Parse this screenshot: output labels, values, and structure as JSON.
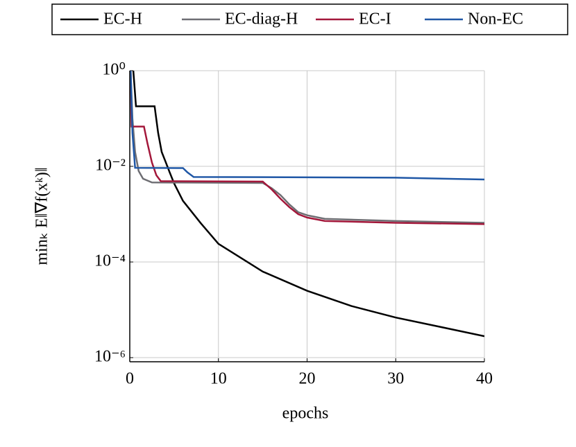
{
  "chart_data": {
    "type": "line",
    "xlabel": "epochs",
    "ylabel": "minₖ E‖∇f(xᵏ)‖",
    "log_y": true,
    "grid": true,
    "legend": "top",
    "xlim": [
      0,
      40
    ],
    "ylim": [
      8.2e-07,
      1
    ],
    "xticks": [
      0,
      10,
      20,
      30,
      40
    ],
    "yticks": [
      {
        "value": 1,
        "label": "10⁰"
      },
      {
        "value": 0.01,
        "label": "10⁻²"
      },
      {
        "value": 0.0001,
        "label": "10⁻⁴"
      },
      {
        "value": 1e-06,
        "label": "10⁻⁶"
      }
    ],
    "series": [
      {
        "name": "EC-H",
        "color": "#000000",
        "x": [
          0.4,
          0.7,
          2.8,
          3.2,
          3.6,
          4,
          4.5,
          5,
          6,
          8,
          10,
          15,
          20,
          25,
          30,
          35,
          40
        ],
        "values": [
          1,
          0.18,
          0.18,
          0.05,
          0.02,
          0.013,
          0.0075,
          0.0044,
          0.0019,
          0.00065,
          0.00024,
          6.3e-05,
          2.5e-05,
          1.2e-05,
          6.9e-06,
          4.4e-06,
          2.8e-06
        ]
      },
      {
        "name": "EC-diag-H",
        "color": "#6e6e73",
        "x": [
          0.1,
          0.3,
          0.6,
          1,
          1.5,
          2.5,
          15,
          16,
          17,
          18,
          19,
          20,
          22,
          30,
          40
        ],
        "values": [
          1,
          0.1,
          0.02,
          0.008,
          0.0055,
          0.0046,
          0.0045,
          0.0035,
          0.0025,
          0.0016,
          0.0011,
          0.00095,
          0.0008,
          0.00072,
          0.00066
        ]
      },
      {
        "name": "EC-I",
        "color": "#a3173a",
        "x": [
          0.1,
          0.2,
          1.6,
          2,
          2.5,
          3,
          3.5,
          15,
          16,
          17,
          18,
          19,
          20,
          22,
          30,
          40
        ],
        "values": [
          1,
          0.068,
          0.068,
          0.03,
          0.012,
          0.0065,
          0.0049,
          0.0048,
          0.0033,
          0.0021,
          0.0014,
          0.001,
          0.00085,
          0.00072,
          0.00066,
          0.00062
        ]
      },
      {
        "name": "Non-EC",
        "color": "#1f57a6",
        "x": [
          0.1,
          0.3,
          0.6,
          6,
          6.5,
          7.2,
          30,
          40
        ],
        "values": [
          1,
          0.05,
          0.0093,
          0.0092,
          0.0075,
          0.006,
          0.0058,
          0.0053
        ]
      }
    ]
  }
}
